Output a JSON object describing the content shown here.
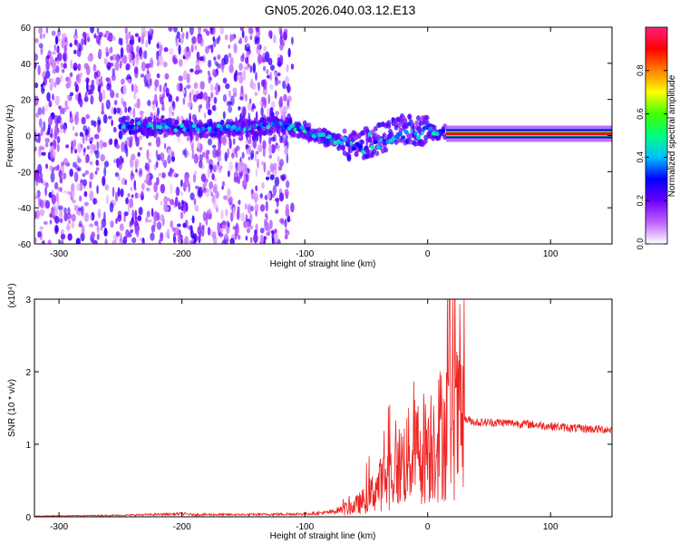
{
  "figure_title": "GN05.2026.040.03.12.E13",
  "chart_data": [
    {
      "type": "heatmap",
      "title": "GN05.2026.040.03.12.E13",
      "xlabel": "Height of straight line (km)",
      "ylabel": "Frequency (Hz)",
      "xlim": [
        -320,
        150
      ],
      "ylim": [
        -60,
        60
      ],
      "x_ticks": [
        -300,
        -200,
        -100,
        0,
        100
      ],
      "y_ticks": [
        -60,
        -40,
        -20,
        0,
        20,
        40,
        60
      ],
      "grid": false,
      "colorbar": {
        "label": "Normalized spectral amplitude",
        "range": [
          0,
          1
        ],
        "ticks": [
          0.0,
          0.2,
          0.4,
          0.6,
          0.8
        ],
        "colormap": "rainbow",
        "colors": [
          "#ffffff",
          "#c060ff",
          "#6a00ff",
          "#0000ff",
          "#00c0ff",
          "#00ff80",
          "#40ff00",
          "#ffff00",
          "#ff8000",
          "#ff0000",
          "#ff2080"
        ]
      },
      "features": [
        {
          "name": "broadband noise",
          "x_range": [
            -320,
            -110
          ],
          "y_range": [
            -60,
            60
          ],
          "amplitude": 0.1
        },
        {
          "name": "frequency trace",
          "points": [
            [
              -250,
              6
            ],
            [
              -200,
              4
            ],
            [
              -150,
              4
            ],
            [
              -120,
              6
            ],
            [
              -100,
              3
            ],
            [
              -80,
              -2
            ],
            [
              -60,
              -6
            ],
            [
              -40,
              -2
            ],
            [
              -20,
              3
            ],
            [
              0,
              3
            ],
            [
              15,
              1
            ],
            [
              50,
              1
            ],
            [
              100,
              0
            ],
            [
              150,
              0
            ]
          ]
        },
        {
          "name": "steady tone",
          "x_range": [
            15,
            150
          ],
          "y": 1,
          "amplitude": 0.9
        }
      ]
    },
    {
      "type": "line",
      "xlabel": "Height of straight line (km)",
      "ylabel": "SNR (10 * v/v)",
      "y_multiplier": "(x10⁴)",
      "xlim": [
        -320,
        150
      ],
      "ylim": [
        0,
        3
      ],
      "x_ticks": [
        -300,
        -200,
        -100,
        0,
        100
      ],
      "y_ticks": [
        0,
        1,
        2,
        3
      ],
      "grid": false,
      "series": [
        {
          "name": "SNR",
          "color": "#ee2222",
          "x": [
            -320,
            -250,
            -200,
            -190,
            -150,
            -100,
            -80,
            -60,
            -50,
            -40,
            -30,
            -20,
            -10,
            0,
            10,
            20,
            30,
            40,
            60,
            80,
            100,
            120,
            150
          ],
          "y": [
            0.01,
            0.02,
            0.04,
            0.03,
            0.03,
            0.04,
            0.06,
            0.15,
            0.25,
            0.45,
            0.6,
            0.8,
            0.95,
            1.05,
            1.2,
            1.35,
            1.35,
            1.3,
            1.3,
            1.28,
            1.25,
            1.22,
            1.2
          ],
          "peak": {
            "x": 18,
            "y": 3.0
          }
        }
      ]
    }
  ]
}
